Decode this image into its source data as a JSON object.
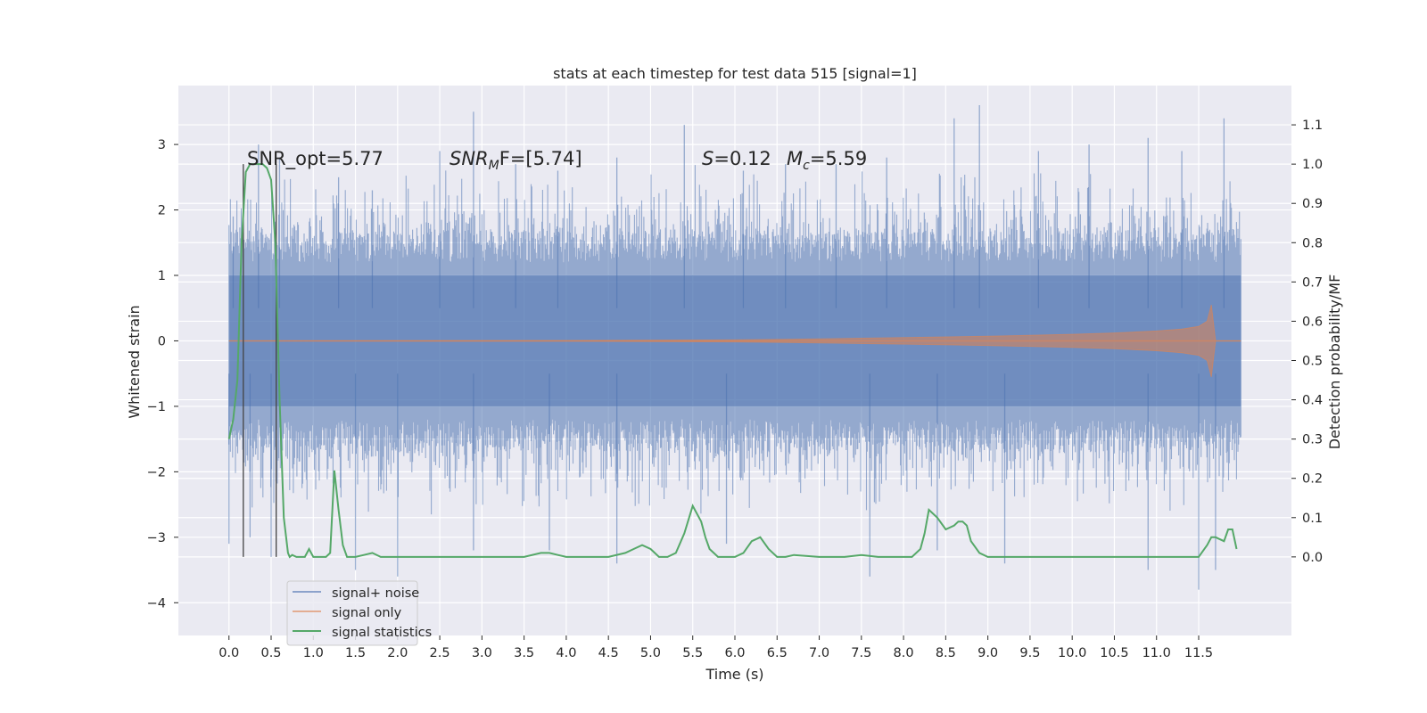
{
  "chart_data": {
    "type": "line",
    "title": "stats at each timestep for test data 515 [signal=1]",
    "xlabel": "Time (s)",
    "ylabel": "Whitened strain",
    "ylabel_right": "Detection probability/MF",
    "xlim": [
      -0.6,
      12.6
    ],
    "ylim": [
      -4.5,
      3.9
    ],
    "ylim_right": [
      -0.2,
      1.2
    ],
    "x_ticks": [
      "0.0",
      "0.5",
      "1.0",
      "1.5",
      "2.0",
      "2.5",
      "3.0",
      "3.5",
      "4.0",
      "4.5",
      "5.0",
      "5.5",
      "6.0",
      "6.5",
      "7.0",
      "7.5",
      "8.0",
      "8.5",
      "9.0",
      "9.5",
      "10.0",
      "10.5",
      "11.0",
      "11.5"
    ],
    "y_ticks_left": [
      "3",
      "2",
      "1",
      "0",
      "−1",
      "−2",
      "−3",
      "−4"
    ],
    "y_ticks_right": [
      "1.1",
      "1.0",
      "0.9",
      "0.8",
      "0.7",
      "0.6",
      "0.5",
      "0.4",
      "0.3",
      "0.2",
      "0.1",
      "0.0"
    ],
    "grid": true,
    "legend_position": "lower-left",
    "annotations": {
      "snr_opt": "SNR_opt=5.77",
      "snr_mf_sym": "SNR",
      "snr_mf_sub": "M",
      "snr_mf_rest": "F=[5.74]",
      "s_sym": "S",
      "s_rest": "=0.12",
      "mc_sym": "M",
      "mc_sub": "c",
      "mc_rest": "=5.59"
    },
    "vertical_markers_s": [
      0.17,
      0.56
    ],
    "noise_band": {
      "x_range": [
        0.0,
        12.0
      ],
      "typical_abs": 1.5,
      "peaks": [
        {
          "x": 0.05,
          "y": 1.9
        },
        {
          "x": 0.35,
          "y": 3.0
        },
        {
          "x": 0.6,
          "y": 2.8
        },
        {
          "x": 1.3,
          "y": 2.5
        },
        {
          "x": 1.7,
          "y": 2.3
        },
        {
          "x": 2.5,
          "y": 2.9
        },
        {
          "x": 2.9,
          "y": 3.5
        },
        {
          "x": 3.4,
          "y": 2.7
        },
        {
          "x": 3.9,
          "y": 2.6
        },
        {
          "x": 4.6,
          "y": 2.8
        },
        {
          "x": 5.4,
          "y": 3.3
        },
        {
          "x": 6.1,
          "y": 2.6
        },
        {
          "x": 6.6,
          "y": 2.7
        },
        {
          "x": 7.2,
          "y": 2.7
        },
        {
          "x": 7.8,
          "y": 2.8
        },
        {
          "x": 8.6,
          "y": 3.4
        },
        {
          "x": 8.9,
          "y": 3.6
        },
        {
          "x": 9.6,
          "y": 2.9
        },
        {
          "x": 10.2,
          "y": 3.0
        },
        {
          "x": 10.9,
          "y": 3.1
        },
        {
          "x": 11.3,
          "y": 2.9
        },
        {
          "x": 11.8,
          "y": 3.4
        }
      ],
      "troughs": [
        {
          "x": 0.0,
          "y": -3.1
        },
        {
          "x": 0.25,
          "y": -3.0
        },
        {
          "x": 0.5,
          "y": -3.3
        },
        {
          "x": 1.5,
          "y": -3.5
        },
        {
          "x": 2.0,
          "y": -3.6
        },
        {
          "x": 2.9,
          "y": -3.2
        },
        {
          "x": 3.8,
          "y": -3.2
        },
        {
          "x": 4.6,
          "y": -3.4
        },
        {
          "x": 5.9,
          "y": -3.1
        },
        {
          "x": 7.6,
          "y": -3.6
        },
        {
          "x": 8.4,
          "y": -3.2
        },
        {
          "x": 9.2,
          "y": -3.4
        },
        {
          "x": 10.9,
          "y": -3.5
        },
        {
          "x": 11.5,
          "y": -3.8
        },
        {
          "x": 11.7,
          "y": -3.5
        }
      ]
    },
    "series": [
      {
        "name": "signal+ noise",
        "color": "#4c72b0",
        "style": "dense noise band (alpha 0.5)"
      },
      {
        "name": "signal only",
        "color": "#dd8452",
        "style": "chirp, amplitude growing from ~0 at 0 s to ~0.55 at 11.65 s, then ~0",
        "envelope": {
          "x": [
            0.0,
            4.0,
            6.0,
            7.0,
            8.0,
            9.0,
            10.0,
            10.5,
            11.0,
            11.3,
            11.5,
            11.6,
            11.65,
            11.7,
            12.0
          ],
          "amp": [
            0.0,
            0.005,
            0.015,
            0.03,
            0.05,
            0.07,
            0.1,
            0.12,
            0.15,
            0.18,
            0.22,
            0.3,
            0.55,
            0.0,
            0.0
          ]
        }
      },
      {
        "name": "signal statistics",
        "color": "#55a868",
        "axis": "right",
        "x": [
          0.0,
          0.05,
          0.1,
          0.15,
          0.2,
          0.25,
          0.3,
          0.35,
          0.4,
          0.45,
          0.5,
          0.55,
          0.6,
          0.65,
          0.7,
          0.72,
          0.75,
          0.8,
          0.85,
          0.9,
          0.95,
          1.0,
          1.05,
          1.1,
          1.15,
          1.2,
          1.25,
          1.3,
          1.35,
          1.4,
          1.45,
          1.5,
          1.6,
          1.7,
          1.8,
          1.9,
          2.0,
          2.5,
          3.0,
          3.5,
          3.7,
          3.8,
          3.9,
          4.0,
          4.5,
          4.7,
          4.8,
          4.9,
          5.0,
          5.1,
          5.2,
          5.3,
          5.4,
          5.5,
          5.6,
          5.65,
          5.7,
          5.8,
          5.9,
          6.0,
          6.1,
          6.2,
          6.3,
          6.4,
          6.5,
          6.6,
          6.7,
          7.0,
          7.3,
          7.5,
          7.7,
          8.0,
          8.1,
          8.2,
          8.25,
          8.3,
          8.4,
          8.5,
          8.6,
          8.65,
          8.7,
          8.75,
          8.8,
          8.9,
          9.0,
          9.5,
          10.0,
          10.5,
          10.8,
          10.9,
          11.0,
          11.5,
          11.6,
          11.65,
          11.7,
          11.8,
          11.85,
          11.9,
          11.95
        ],
        "y": [
          0.3,
          0.35,
          0.45,
          0.8,
          0.98,
          1.0,
          1.0,
          1.0,
          1.0,
          0.99,
          0.96,
          0.8,
          0.4,
          0.1,
          0.01,
          0.0,
          0.005,
          0.0,
          0.0,
          0.0,
          0.02,
          0.0,
          0.0,
          0.0,
          0.0,
          0.01,
          0.22,
          0.12,
          0.03,
          0.0,
          0.0,
          0.0,
          0.005,
          0.01,
          0.0,
          0.0,
          0.0,
          0.0,
          0.0,
          0.0,
          0.01,
          0.01,
          0.005,
          0.0,
          0.0,
          0.01,
          0.02,
          0.03,
          0.02,
          0.0,
          0.0,
          0.01,
          0.06,
          0.13,
          0.09,
          0.05,
          0.02,
          0.0,
          0.0,
          0.0,
          0.01,
          0.04,
          0.05,
          0.02,
          0.0,
          0.0,
          0.005,
          0.0,
          0.0,
          0.005,
          0.0,
          0.0,
          0.0,
          0.02,
          0.06,
          0.12,
          0.1,
          0.07,
          0.08,
          0.09,
          0.09,
          0.08,
          0.04,
          0.01,
          0.0,
          0.0,
          0.0,
          0.0,
          0.0,
          0.0,
          0.0,
          0.0,
          0.03,
          0.05,
          0.05,
          0.04,
          0.07,
          0.07,
          0.02
        ]
      }
    ]
  }
}
